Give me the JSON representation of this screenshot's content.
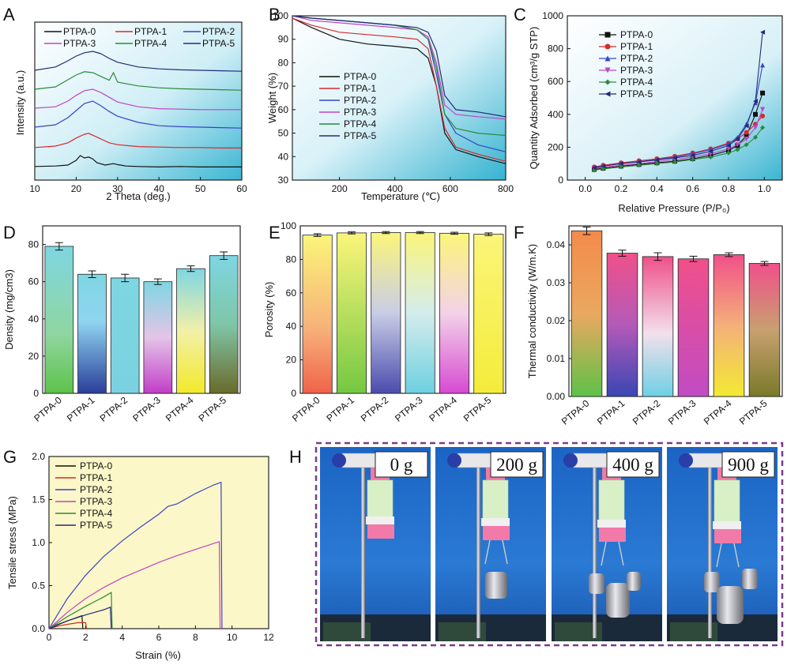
{
  "colors": {
    "PTPA-0": "#111111",
    "PTPA-1": "#d62a2a",
    "PTPA-2": "#3944c4",
    "PTPA-3": "#c044c4",
    "PTPA-4": "#2a8a3a",
    "PTPA-5": "#252a7a"
  },
  "chart_data": [
    {
      "panel": "A",
      "type": "line",
      "xlabel": "2 Theta (deg.)",
      "ylabel": "Intensity (a.u.)",
      "xlim": [
        10,
        60
      ],
      "xticks": [
        10,
        20,
        30,
        40,
        50,
        60
      ],
      "legend": [
        "PTPA-0",
        "PTPA-1",
        "PTPA-2",
        "PTPA-3",
        "PTPA-4",
        "PTPA-5"
      ],
      "series": [
        {
          "name": "PTPA-0",
          "offset": 0,
          "x": [
            10,
            15,
            18,
            20,
            21,
            22,
            23,
            24,
            25,
            27,
            29,
            30,
            32,
            35,
            40,
            45,
            50,
            55,
            60
          ],
          "y": [
            0.02,
            0.03,
            0.05,
            0.15,
            0.25,
            0.2,
            0.22,
            0.18,
            0.1,
            0.05,
            0.08,
            0.06,
            0.03,
            0.02,
            0.01,
            0.02,
            0.01,
            0.01,
            0.01
          ]
        },
        {
          "name": "PTPA-1",
          "offset": 1,
          "x": [
            10,
            15,
            18,
            20,
            22,
            23,
            24,
            26,
            28,
            30,
            35,
            40,
            45,
            50,
            55,
            60
          ],
          "y": [
            0.02,
            0.05,
            0.12,
            0.22,
            0.3,
            0.32,
            0.28,
            0.2,
            0.12,
            0.08,
            0.04,
            0.03,
            0.02,
            0.02,
            0.01,
            0.01
          ]
        },
        {
          "name": "PTPA-2",
          "offset": 2,
          "x": [
            10,
            15,
            18,
            20,
            22,
            24,
            26,
            28,
            30,
            35,
            40,
            45,
            50,
            55,
            60
          ],
          "y": [
            0.05,
            0.1,
            0.25,
            0.4,
            0.55,
            0.6,
            0.5,
            0.38,
            0.28,
            0.15,
            0.08,
            0.06,
            0.05,
            0.04,
            0.03
          ]
        },
        {
          "name": "PTPA-3",
          "offset": 3,
          "x": [
            10,
            15,
            18,
            20,
            22,
            24,
            26,
            28,
            30,
            35,
            40,
            45,
            50,
            55,
            60
          ],
          "y": [
            0.05,
            0.08,
            0.2,
            0.32,
            0.42,
            0.45,
            0.38,
            0.28,
            0.18,
            0.08,
            0.04,
            0.03,
            0.02,
            0.02,
            0.02
          ]
        },
        {
          "name": "PTPA-4",
          "offset": 4,
          "x": [
            10,
            15,
            18,
            20,
            22,
            24,
            26,
            28,
            29,
            30,
            35,
            40,
            45,
            50,
            55,
            60
          ],
          "y": [
            0.05,
            0.1,
            0.25,
            0.35,
            0.42,
            0.4,
            0.32,
            0.24,
            0.4,
            0.2,
            0.12,
            0.08,
            0.06,
            0.05,
            0.04,
            0.03
          ]
        },
        {
          "name": "PTPA-5",
          "offset": 5,
          "x": [
            10,
            15,
            18,
            20,
            22,
            24,
            26,
            28,
            30,
            35,
            40,
            45,
            50,
            55,
            60
          ],
          "y": [
            0.05,
            0.12,
            0.25,
            0.35,
            0.42,
            0.45,
            0.4,
            0.3,
            0.22,
            0.12,
            0.08,
            0.06,
            0.05,
            0.04,
            0.03
          ]
        }
      ]
    },
    {
      "panel": "B",
      "type": "line",
      "xlabel": "Temperature (℃)",
      "ylabel": "Weight (%)",
      "xlim": [
        30,
        800
      ],
      "ylim": [
        30,
        100
      ],
      "xticks": [
        200,
        400,
        600,
        800
      ],
      "yticks": [
        30,
        40,
        50,
        60,
        70,
        80,
        90,
        100
      ],
      "legend": [
        "PTPA-0",
        "PTPA-1",
        "PTPA-2",
        "PTPA-3",
        "PTPA-4",
        "PTPA-5"
      ],
      "series": [
        {
          "name": "PTPA-0",
          "x": [
            30,
            100,
            200,
            300,
            400,
            480,
            520,
            550,
            580,
            620,
            700,
            800
          ],
          "y": [
            99,
            95,
            90,
            88,
            87,
            86,
            82,
            70,
            50,
            43,
            40,
            37
          ]
        },
        {
          "name": "PTPA-1",
          "x": [
            30,
            100,
            200,
            300,
            400,
            480,
            520,
            550,
            580,
            620,
            700,
            800
          ],
          "y": [
            99,
            96,
            93,
            92,
            91,
            90,
            86,
            70,
            52,
            44,
            41,
            38
          ]
        },
        {
          "name": "PTPA-2",
          "x": [
            30,
            100,
            200,
            300,
            400,
            480,
            520,
            550,
            580,
            620,
            700,
            800
          ],
          "y": [
            100,
            99,
            98,
            97,
            96,
            94,
            90,
            75,
            58,
            50,
            45,
            42
          ]
        },
        {
          "name": "PTPA-3",
          "x": [
            30,
            100,
            200,
            300,
            400,
            480,
            520,
            550,
            580,
            620,
            700,
            800
          ],
          "y": [
            100,
            98,
            97,
            96,
            95,
            94,
            91,
            80,
            62,
            58,
            57,
            56
          ]
        },
        {
          "name": "PTPA-4",
          "x": [
            30,
            100,
            200,
            300,
            400,
            480,
            520,
            550,
            580,
            620,
            700,
            800
          ],
          "y": [
            100,
            99,
            98,
            97,
            96,
            94,
            90,
            78,
            58,
            52,
            50,
            49
          ]
        },
        {
          "name": "PTPA-5",
          "x": [
            30,
            100,
            200,
            300,
            400,
            480,
            520,
            550,
            580,
            620,
            700,
            800
          ],
          "y": [
            100,
            99,
            98,
            97,
            96,
            95,
            93,
            85,
            66,
            60,
            59,
            57
          ]
        }
      ]
    },
    {
      "panel": "C",
      "type": "line",
      "xlabel": "Relative Pressure (P/P₀)",
      "ylabel": "Quantity Adsorbed (cm³/g STP)",
      "xlim": [
        -0.1,
        1.1
      ],
      "ylim": [
        0,
        1000
      ],
      "xticks": [
        0.0,
        0.2,
        0.4,
        0.6,
        0.8,
        1.0
      ],
      "yticks": [
        0,
        200,
        400,
        600,
        800,
        1000
      ],
      "legend": [
        "PTPA-0",
        "PTPA-1",
        "PTPA-2",
        "PTPA-3",
        "PTPA-4",
        "PTPA-5"
      ],
      "series": [
        {
          "name": "PTPA-0",
          "x": [
            0.05,
            0.1,
            0.2,
            0.3,
            0.4,
            0.5,
            0.6,
            0.7,
            0.8,
            0.85,
            0.9,
            0.95,
            0.99
          ],
          "y": [
            65,
            72,
            85,
            95,
            105,
            115,
            130,
            150,
            180,
            210,
            270,
            400,
            530
          ]
        },
        {
          "name": "PTPA-1",
          "x": [
            0.05,
            0.1,
            0.2,
            0.3,
            0.4,
            0.5,
            0.6,
            0.7,
            0.8,
            0.85,
            0.9,
            0.95,
            0.99
          ],
          "y": [
            80,
            90,
            105,
            118,
            130,
            145,
            165,
            190,
            225,
            250,
            290,
            340,
            390
          ]
        },
        {
          "name": "PTPA-2",
          "x": [
            0.05,
            0.1,
            0.2,
            0.3,
            0.4,
            0.5,
            0.6,
            0.7,
            0.8,
            0.85,
            0.9,
            0.95,
            0.99
          ],
          "y": [
            75,
            85,
            100,
            112,
            125,
            140,
            160,
            185,
            220,
            260,
            340,
            470,
            700
          ]
        },
        {
          "name": "PTPA-3",
          "x": [
            0.05,
            0.1,
            0.2,
            0.3,
            0.4,
            0.5,
            0.6,
            0.7,
            0.8,
            0.85,
            0.9,
            0.95,
            0.99
          ],
          "y": [
            70,
            78,
            90,
            100,
            112,
            125,
            140,
            160,
            190,
            215,
            250,
            320,
            430
          ]
        },
        {
          "name": "PTPA-4",
          "x": [
            0.05,
            0.1,
            0.2,
            0.3,
            0.4,
            0.5,
            0.6,
            0.7,
            0.8,
            0.85,
            0.9,
            0.95,
            0.99
          ],
          "y": [
            60,
            68,
            80,
            90,
            100,
            110,
            125,
            140,
            165,
            185,
            215,
            260,
            320
          ]
        },
        {
          "name": "PTPA-5",
          "x": [
            0.05,
            0.1,
            0.2,
            0.3,
            0.4,
            0.5,
            0.6,
            0.7,
            0.8,
            0.85,
            0.9,
            0.95,
            0.99
          ],
          "y": [
            75,
            85,
            100,
            110,
            122,
            135,
            150,
            175,
            210,
            250,
            330,
            480,
            900
          ]
        }
      ]
    },
    {
      "panel": "D",
      "type": "bar",
      "ylabel": "Density (mg/cm3)",
      "ylim": [
        0,
        90
      ],
      "yticks": [
        0,
        20,
        40,
        60,
        80
      ],
      "categories": [
        "PTPA-0",
        "PTPA-1",
        "PTPA-2",
        "PTPA-3",
        "PTPA-4",
        "PTPA-5"
      ],
      "values": [
        79,
        64,
        62,
        60,
        67,
        74
      ],
      "errors": [
        2,
        1.8,
        2,
        1.5,
        1.5,
        2
      ]
    },
    {
      "panel": "E",
      "type": "bar",
      "ylabel": "Porosity (%)",
      "ylim": [
        0,
        100
      ],
      "yticks": [
        0,
        20,
        40,
        60,
        80,
        100
      ],
      "categories": [
        "PTPA-0",
        "PTPA-1",
        "PTPA-2",
        "PTPA-3",
        "PTPA-4",
        "PTPA-5"
      ],
      "values": [
        94.5,
        95.8,
        96.0,
        96.0,
        95.6,
        95.0
      ],
      "errors": [
        0.8,
        0.6,
        0.6,
        0.6,
        0.6,
        0.8
      ]
    },
    {
      "panel": "F",
      "type": "bar",
      "ylabel": "Thermal conductivity (W/m.K)",
      "ylim": [
        0,
        0.045
      ],
      "yticks": [
        0.0,
        0.01,
        0.02,
        0.03,
        0.04
      ],
      "categories": [
        "PTPA-0",
        "PTPA-1",
        "PTPA-2",
        "PTPA-3",
        "PTPA-4",
        "PTPA-5"
      ],
      "values": [
        0.0437,
        0.0378,
        0.0369,
        0.0363,
        0.0374,
        0.0351
      ],
      "errors": [
        0.001,
        0.0008,
        0.001,
        0.0007,
        0.0005,
        0.0005
      ]
    },
    {
      "panel": "G",
      "type": "line",
      "xlabel": "Strain (%)",
      "ylabel": "Tensile stress (MPa)",
      "xlim": [
        0,
        12
      ],
      "ylim": [
        0,
        2.0
      ],
      "xticks": [
        0,
        2,
        4,
        6,
        8,
        10,
        12
      ],
      "yticks": [
        0.0,
        0.5,
        1.0,
        1.5,
        2.0
      ],
      "legend": [
        "PTPA-0",
        "PTPA-1",
        "PTPA-2",
        "PTPA-3",
        "PTPA-4",
        "PTPA-5"
      ],
      "series": [
        {
          "name": "PTPA-0",
          "x": [
            0,
            0.5,
            1.0,
            1.8,
            1.85
          ],
          "y": [
            0,
            0.05,
            0.09,
            0.15,
            0
          ]
        },
        {
          "name": "PTPA-1",
          "x": [
            0,
            0.5,
            1.0,
            1.6,
            2.0,
            2.05
          ],
          "y": [
            0,
            0.03,
            0.05,
            0.07,
            0.07,
            0
          ]
        },
        {
          "name": "PTPA-2",
          "x": [
            0,
            1,
            2,
            3,
            4,
            5,
            6,
            6.5,
            7,
            8,
            9,
            9.4,
            9.45
          ],
          "y": [
            0,
            0.35,
            0.62,
            0.84,
            1.02,
            1.18,
            1.33,
            1.42,
            1.45,
            1.57,
            1.67,
            1.7,
            0
          ]
        },
        {
          "name": "PTPA-3",
          "x": [
            0,
            1,
            2,
            3,
            4,
            5,
            6,
            7,
            8,
            9,
            9.3,
            9.35
          ],
          "y": [
            0,
            0.19,
            0.35,
            0.48,
            0.59,
            0.68,
            0.77,
            0.85,
            0.92,
            0.99,
            1.01,
            0
          ]
        },
        {
          "name": "PTPA-4",
          "x": [
            0,
            1,
            2,
            3,
            3.4,
            3.45
          ],
          "y": [
            0,
            0.14,
            0.26,
            0.37,
            0.42,
            0
          ]
        },
        {
          "name": "PTPA-5",
          "x": [
            0,
            1,
            2,
            3,
            3.35,
            3.4
          ],
          "y": [
            0,
            0.09,
            0.16,
            0.22,
            0.25,
            0
          ]
        }
      ]
    }
  ],
  "panel_labels": [
    "A",
    "B",
    "C",
    "D",
    "E",
    "F",
    "G",
    "H"
  ],
  "photos": [
    "0 g",
    "200 g",
    "400 g",
    "900 g"
  ]
}
